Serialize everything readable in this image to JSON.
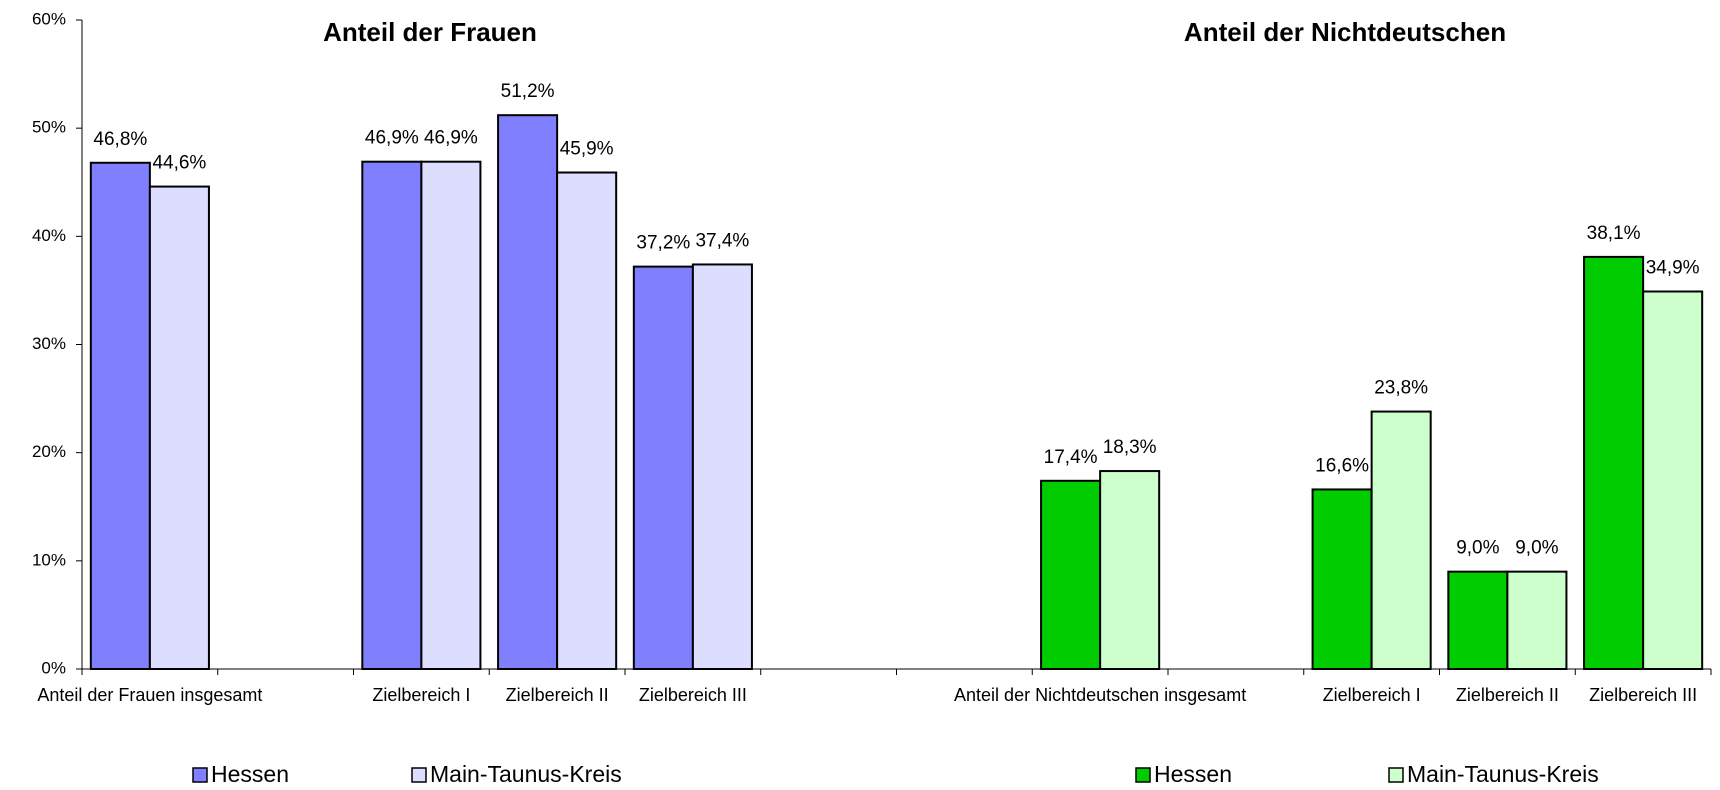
{
  "chart_data": {
    "type": "bar",
    "titles": [
      "Anteil der Frauen",
      "Anteil der Nichtdeutschen"
    ],
    "categories": [
      "Anteil der Frauen insgesamt",
      null,
      "Zielbereich I",
      "Zielbereich II",
      "Zielbereich III",
      null,
      null,
      "Anteil der Nichtdeutschen insgesamt",
      null,
      "Zielbereich I",
      "Zielbereich II",
      "Zielbereich III"
    ],
    "series": [
      {
        "name": "Hessen",
        "color": "#8080ff",
        "values": [
          46.8,
          null,
          46.9,
          51.2,
          37.2,
          null,
          null,
          null,
          null,
          null,
          null,
          null
        ],
        "value_labels": [
          "46,8%",
          null,
          "46,9%",
          "51,2%",
          "37,2%",
          null,
          null,
          null,
          null,
          null,
          null,
          null
        ]
      },
      {
        "name": "Main-Taunus-Kreis",
        "color": "#ddddff",
        "values": [
          44.6,
          null,
          46.9,
          45.9,
          37.4,
          null,
          null,
          null,
          null,
          null,
          null,
          null
        ],
        "value_labels": [
          "44,6%",
          null,
          "46,9%",
          "45,9%",
          "37,4%",
          null,
          null,
          null,
          null,
          null,
          null,
          null
        ]
      },
      {
        "name": "Hessen",
        "color": "#00cc00",
        "values": [
          null,
          null,
          null,
          null,
          null,
          null,
          null,
          17.4,
          null,
          16.6,
          9.0,
          38.1
        ],
        "value_labels": [
          null,
          null,
          null,
          null,
          null,
          null,
          null,
          "17,4%",
          null,
          "16,6%",
          "9,0%",
          "38,1%"
        ]
      },
      {
        "name": "Main-Taunus-Kreis",
        "color": "#ccffcc",
        "values": [
          null,
          null,
          null,
          null,
          null,
          null,
          null,
          18.3,
          null,
          23.8,
          9.0,
          34.9
        ],
        "value_labels": [
          null,
          null,
          null,
          null,
          null,
          null,
          null,
          "18,3%",
          null,
          "23,8%",
          "9,0%",
          "34,9%"
        ]
      }
    ],
    "ylim": [
      0,
      60
    ],
    "yticks": [
      {
        "value": 0,
        "label": "0%"
      },
      {
        "value": 10,
        "label": "10%"
      },
      {
        "value": 20,
        "label": "20%"
      },
      {
        "value": 30,
        "label": "30%"
      },
      {
        "value": 40,
        "label": "40%"
      },
      {
        "value": 50,
        "label": "50%"
      },
      {
        "value": 60,
        "label": "60%"
      }
    ]
  }
}
